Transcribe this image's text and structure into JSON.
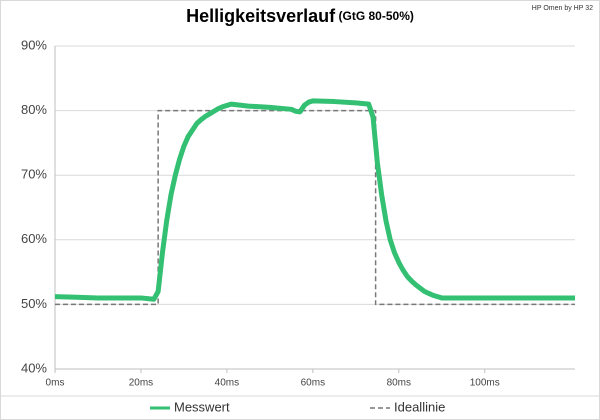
{
  "chart_data": {
    "type": "line",
    "title": "Helligkeitsverlauf",
    "subtitle": "(GtG 80-50%)",
    "annotation": "HP Omen by HP 32",
    "xlim": [
      0,
      121
    ],
    "xticks": [
      {
        "value": 0,
        "label": "0ms"
      },
      {
        "value": 20,
        "label": "20ms"
      },
      {
        "value": 40,
        "label": "40ms"
      },
      {
        "value": 60,
        "label": "60ms"
      },
      {
        "value": 80,
        "label": "80ms"
      },
      {
        "value": 100,
        "label": "100ms"
      }
    ],
    "ylim": [
      40,
      90
    ],
    "yticks": [
      {
        "value": 40,
        "label": "40%"
      },
      {
        "value": 50,
        "label": "50%"
      },
      {
        "value": 60,
        "label": "60%"
      },
      {
        "value": 70,
        "label": "70%"
      },
      {
        "value": 80,
        "label": "80%"
      },
      {
        "value": 90,
        "label": "90%"
      }
    ],
    "grid": true,
    "legend": "bottom",
    "series": [
      {
        "name": "Messwert",
        "color": "#33c072",
        "style": "solid",
        "x": [
          0,
          5,
          10,
          15,
          20,
          23,
          24,
          25,
          26,
          27,
          28,
          29,
          30,
          31,
          32,
          33,
          34,
          35,
          36,
          37,
          38,
          39,
          40,
          41,
          45,
          50,
          55,
          56,
          57,
          58,
          59,
          60,
          65,
          70,
          73,
          74,
          75,
          76,
          77,
          78,
          79,
          80,
          81,
          82,
          83,
          84,
          85,
          86,
          87,
          88,
          89,
          90,
          95,
          100,
          105,
          110,
          115,
          120,
          121
        ],
        "values": [
          51.2,
          51.1,
          51,
          51,
          51,
          50.8,
          52,
          58,
          63,
          67,
          70,
          72.5,
          74.5,
          76,
          77,
          78,
          78.6,
          79.1,
          79.5,
          79.9,
          80.3,
          80.6,
          80.8,
          81,
          80.7,
          80.5,
          80.2,
          79.9,
          79.8,
          80.8,
          81.3,
          81.5,
          81.4,
          81.2,
          81,
          79,
          72,
          67,
          63,
          60,
          58,
          56.5,
          55.3,
          54.3,
          53.6,
          53,
          52.5,
          52,
          51.7,
          51.4,
          51.2,
          51,
          51,
          51,
          51,
          51,
          51,
          51,
          51
        ]
      },
      {
        "name": "Ideallinie",
        "color": "#777777",
        "style": "dashed",
        "x": [
          0,
          24,
          24,
          74.6,
          74.6,
          121
        ],
        "values": [
          50,
          50,
          80,
          80,
          50,
          50
        ]
      }
    ]
  }
}
